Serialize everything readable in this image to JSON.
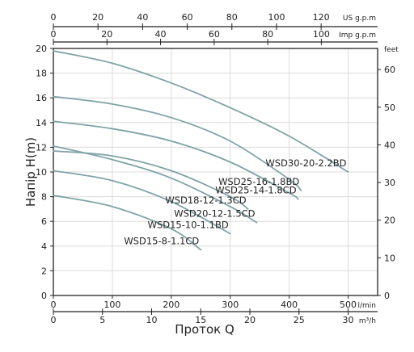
{
  "chart_data": {
    "type": "line",
    "x_axis_primary": {
      "label": "l/min",
      "range": [
        0,
        550
      ],
      "ticks": [
        0,
        100,
        200,
        300,
        400,
        500
      ]
    },
    "x_axis_secondary": {
      "label": "m³/h",
      "range": [
        0,
        33
      ],
      "ticks": [
        0,
        5,
        10,
        15,
        20,
        25,
        30
      ]
    },
    "x_axis_top_us": {
      "label": "US g.p.m",
      "range": [
        0,
        145.3
      ],
      "ticks": [
        0,
        20,
        40,
        60,
        80,
        100,
        120
      ]
    },
    "x_axis_top_imp": {
      "label": "Imp g.p.m",
      "range": [
        0,
        121
      ],
      "ticks": [
        0,
        20,
        40,
        60,
        80,
        100
      ]
    },
    "y_axis_left": {
      "label": "Напір H(m)",
      "range": [
        0,
        20
      ],
      "ticks": [
        0,
        2,
        4,
        6,
        8,
        10,
        12,
        14,
        16,
        18,
        20
      ]
    },
    "y_axis_right": {
      "label": "feet",
      "range": [
        0,
        65.6
      ],
      "ticks": [
        0,
        10,
        20,
        30,
        40,
        50,
        60
      ]
    },
    "xlabel": "Проток Q",
    "grid": true,
    "series": [
      {
        "name": "WSD30-20-2.2BD",
        "x": [
          0,
          100,
          200,
          300,
          400,
          500
        ],
        "y": [
          19.8,
          18.8,
          17.2,
          15.2,
          12.9,
          10.0
        ]
      },
      {
        "name": "WSD25-16-1.8BD",
        "x": [
          0,
          100,
          200,
          300,
          400,
          420
        ],
        "y": [
          16.1,
          15.5,
          14.4,
          12.5,
          9.4,
          8.5
        ]
      },
      {
        "name": "WSD25-14-1.8CD",
        "x": [
          0,
          100,
          200,
          300,
          400,
          415
        ],
        "y": [
          14.1,
          13.5,
          12.5,
          10.8,
          8.3,
          7.8
        ]
      },
      {
        "name": "WSD20-12-1.5CD",
        "x": [
          0,
          100,
          200,
          300,
          345
        ],
        "y": [
          12.1,
          11.0,
          9.5,
          7.2,
          5.9
        ]
      },
      {
        "name": "WSD18-12-1.3CD",
        "x": [
          0,
          100,
          200,
          300,
          330
        ],
        "y": [
          11.7,
          11.3,
          10.1,
          8.0,
          7.0
        ]
      },
      {
        "name": "WSD15-10-1.1BD",
        "x": [
          0,
          100,
          200,
          300
        ],
        "y": [
          10.1,
          9.3,
          7.6,
          5.0
        ]
      },
      {
        "name": "WSD15-8-1.1CD",
        "x": [
          0,
          100,
          200,
          250
        ],
        "y": [
          8.1,
          7.2,
          5.4,
          3.7
        ]
      }
    ],
    "line_color": "#7fa3a6"
  }
}
